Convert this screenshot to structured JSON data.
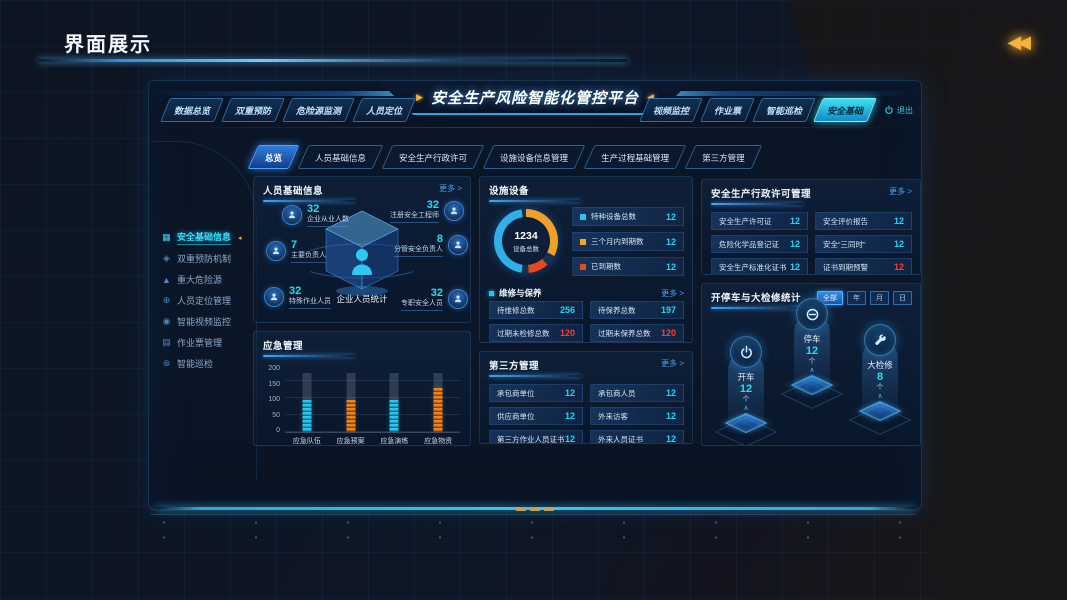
{
  "page": {
    "title": "界面展示"
  },
  "platform": {
    "title": "安全生产风险智能化管控平台",
    "logout": "退出",
    "nav_left": [
      {
        "label": "数据总览"
      },
      {
        "label": "双重预防"
      },
      {
        "label": "危险源监测"
      },
      {
        "label": "人员定位"
      }
    ],
    "nav_right": [
      {
        "label": "视频监控"
      },
      {
        "label": "作业票"
      },
      {
        "label": "智能巡检"
      },
      {
        "label": "安全基础",
        "active": true
      }
    ]
  },
  "subtabs": [
    {
      "label": "总览",
      "active": true
    },
    {
      "label": "人员基础信息"
    },
    {
      "label": "安全生产行政许可"
    },
    {
      "label": "设施设备信息管理"
    },
    {
      "label": "生产过程基础管理"
    },
    {
      "label": "第三方管理"
    }
  ],
  "sidebar": {
    "items": [
      {
        "label": "安全基础信息",
        "icon": "▦",
        "active": true
      },
      {
        "label": "双重预防机制",
        "icon": "◈"
      },
      {
        "label": "重大危险源",
        "icon": "▲"
      },
      {
        "label": "人员定位管理",
        "icon": "⊕"
      },
      {
        "label": "智能视频监控",
        "icon": "◉"
      },
      {
        "label": "作业票管理",
        "icon": "▤"
      },
      {
        "label": "智能巡检",
        "icon": "⊛"
      }
    ]
  },
  "panels": {
    "personnel": {
      "title": "人员基础信息",
      "more": "更多 >",
      "center_label": "企业人员统计",
      "stats": [
        {
          "value": "32",
          "label": "企业从业人数"
        },
        {
          "value": "32",
          "label": "注册安全工程师"
        },
        {
          "value": "7",
          "label": "主要负责人"
        },
        {
          "value": "8",
          "label": "分管安全负责人"
        },
        {
          "value": "32",
          "label": "特殊作业人员"
        },
        {
          "value": "32",
          "label": "专职安全人员"
        }
      ]
    },
    "equipment": {
      "title": "设施设备",
      "maintenance": {
        "title": "维修与保养",
        "more": "更多 >",
        "stats": [
          {
            "label": "待维修总数",
            "value": "256"
          },
          {
            "label": "待保养总数",
            "value": "197"
          },
          {
            "label": "过期未检修总数",
            "value": "120",
            "color": "#ff3b36"
          },
          {
            "label": "过期未保养总数",
            "value": "120",
            "color": "#ff3b36"
          }
        ]
      }
    },
    "third_party": {
      "title": "第三方管理",
      "more": "更多 >",
      "stats": [
        {
          "label": "承包商单位",
          "value": "12"
        },
        {
          "label": "承包商人员",
          "value": "12"
        },
        {
          "label": "供应商单位",
          "value": "12"
        },
        {
          "label": "外来访客",
          "value": "12"
        },
        {
          "label": "第三方作业人员证书",
          "value": "12"
        },
        {
          "label": "外来人员证书",
          "value": "12"
        }
      ]
    },
    "licensing": {
      "title": "安全生产行政许可管理",
      "more": "更多 >",
      "stats": [
        {
          "label": "安全生产许可证",
          "value": "12"
        },
        {
          "label": "安全评价报告",
          "value": "12"
        },
        {
          "label": "危险化学品登记证",
          "value": "12"
        },
        {
          "label": "安全“三同时”",
          "value": "12"
        },
        {
          "label": "安全生产标准化证书",
          "value": "12"
        },
        {
          "label": "证书到期预警",
          "value": "12",
          "color": "#ff3b36"
        }
      ]
    },
    "emergency": {
      "title": "应急管理"
    },
    "overhaul": {
      "title": "开停车与大检修统计",
      "filters": [
        {
          "label": "全部",
          "active": true
        },
        {
          "label": "年"
        },
        {
          "label": "月"
        },
        {
          "label": "日"
        }
      ],
      "stats": [
        {
          "label": "开车",
          "value": "12",
          "unit": "个"
        },
        {
          "label": "停车",
          "value": "12",
          "unit": "个"
        },
        {
          "label": "大检修",
          "value": "8",
          "unit": "个"
        }
      ]
    }
  },
  "chart_data": [
    {
      "type": "bar",
      "title": "应急管理",
      "categories": [
        "应急队伍",
        "应急预案",
        "应急演练",
        "应急物资"
      ],
      "values": [
        95,
        95,
        95,
        130
      ],
      "colors": [
        "#29c5f0",
        "#f0821e",
        "#29c5f0",
        "#f0821e"
      ],
      "track_value": 175,
      "xlabel": "",
      "ylabel": "",
      "ylim": [
        0,
        200
      ],
      "yticks_desc": [
        200,
        150,
        100,
        50,
        0
      ],
      "grid": true,
      "legend": "none"
    },
    {
      "type": "pie",
      "title": "设施设备",
      "center_value": "1234",
      "center_label": "设备总数",
      "segments": [
        {
          "color": "#f0a028",
          "from": 0,
          "to": 118
        },
        {
          "color": "#16314e",
          "from": 118,
          "to": 138
        },
        {
          "color": "#e8481d",
          "from": 138,
          "to": 175
        },
        {
          "color": "#16314e",
          "from": 175,
          "to": 188
        },
        {
          "color": "#2fb0e8",
          "from": 188,
          "to": 352
        },
        {
          "color": "#16314e",
          "from": 352,
          "to": 360
        }
      ],
      "legend": [
        {
          "label": "特种设备总数",
          "value": 12,
          "color": "#29c5f0"
        },
        {
          "label": "三个月内到期数",
          "value": 12,
          "color": "#f5a623"
        },
        {
          "label": "已到期数",
          "value": 12,
          "color": "#e8481d"
        }
      ]
    }
  ]
}
